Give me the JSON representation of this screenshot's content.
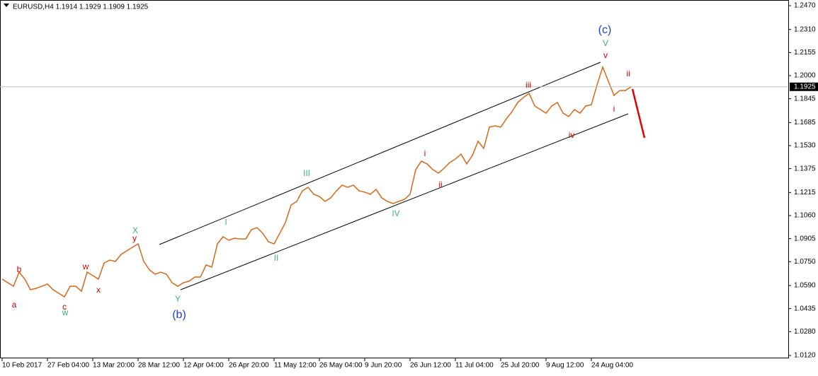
{
  "chart_data": {
    "type": "line",
    "title": "EURUSD,H4  1.1914 1.1929 1.1909 1.1925",
    "categories": [
      "10 Feb 2017",
      null,
      null,
      null,
      null,
      null,
      null,
      null,
      "27 Feb 04:00",
      null,
      null,
      null,
      null,
      null,
      null,
      null,
      "13 Mar 20:00",
      null,
      null,
      null,
      null,
      null,
      null,
      null,
      "28 Mar 12:00",
      null,
      null,
      null,
      null,
      null,
      null,
      null,
      "12 Apr 04:00",
      null,
      null,
      null,
      null,
      null,
      null,
      null,
      "26 Apr 20:00",
      null,
      null,
      null,
      null,
      null,
      null,
      null,
      "11 May 12:00",
      null,
      null,
      null,
      null,
      null,
      null,
      null,
      "26 May 04:00",
      null,
      null,
      null,
      null,
      null,
      null,
      null,
      "9 Jun 20:00",
      null,
      null,
      null,
      null,
      null,
      null,
      null,
      "26 Jun 12:00",
      null,
      null,
      null,
      null,
      null,
      null,
      null,
      "11 Jul 04:00",
      null,
      null,
      null,
      null,
      null,
      null,
      null,
      "25 Jul 20:00",
      null,
      null,
      null,
      null,
      null,
      null,
      null,
      "9 Aug 12:00",
      null,
      null,
      null,
      null,
      null,
      null,
      null,
      "24 Aug 04:00",
      null,
      null,
      null,
      null,
      null,
      null,
      null
    ],
    "series": [
      {
        "name": "EURUSD",
        "color": "#d2691e",
        "values": [
          1.0633,
          1.0609,
          1.0585,
          1.068,
          1.0633,
          1.0562,
          1.0571,
          1.0585,
          1.06,
          1.0562,
          1.0538,
          1.0514,
          1.0585,
          1.0585,
          1.0552,
          1.068,
          1.0657,
          1.0633,
          1.0742,
          1.0761,
          1.0752,
          1.0799,
          1.0823,
          1.0847,
          1.087,
          1.0752,
          1.0695,
          1.0666,
          1.068,
          1.0666,
          1.0609,
          1.0585,
          1.0609,
          1.0619,
          1.0647,
          1.0647,
          1.0728,
          1.0714,
          1.087,
          1.0918,
          1.0894,
          1.0908,
          1.0903,
          1.0903,
          1.0965,
          1.0979,
          1.0941,
          1.0884,
          1.087,
          1.0941,
          1.1013,
          1.1131,
          1.1155,
          1.1226,
          1.125,
          1.1203,
          1.1188,
          1.1155,
          1.1179,
          1.1226,
          1.1264,
          1.125,
          1.1264,
          1.1226,
          1.1217,
          1.1203,
          1.1236,
          1.1179,
          1.1155,
          1.1141,
          1.1155,
          1.1169,
          1.1203,
          1.1369,
          1.1426,
          1.1407,
          1.1369,
          1.1345,
          1.1378,
          1.1416,
          1.144,
          1.1473,
          1.1407,
          1.1464,
          1.1559,
          1.1511,
          1.1654,
          1.1663,
          1.1654,
          1.171,
          1.1758,
          1.182,
          1.1853,
          1.1881,
          1.1796,
          1.1772,
          1.1748,
          1.1796,
          1.182,
          1.1748,
          1.1725,
          1.1772,
          1.1748,
          1.1796,
          1.1805,
          1.1938,
          1.2057,
          1.1962,
          1.1867,
          1.19,
          1.19,
          1.1925
        ]
      }
    ],
    "ylim": [
      1.012,
      1.247
    ],
    "yticks": [
      {
        "value": 1.247,
        "label": "1.2470"
      },
      {
        "value": 1.231,
        "label": "1.2310"
      },
      {
        "value": 1.2155,
        "label": "1.2155"
      },
      {
        "value": 1.2,
        "label": "1.2000"
      },
      {
        "value": 1.1845,
        "label": "1.1845"
      },
      {
        "value": 1.1685,
        "label": "1.1685"
      },
      {
        "value": 1.153,
        "label": "1.1530"
      },
      {
        "value": 1.1375,
        "label": "1.1375"
      },
      {
        "value": 1.1215,
        "label": "1.1215"
      },
      {
        "value": 1.106,
        "label": "1.1060"
      },
      {
        "value": 1.0905,
        "label": "1.0905"
      },
      {
        "value": 1.075,
        "label": "1.0750"
      },
      {
        "value": 1.059,
        "label": "1.0590"
      },
      {
        "value": 1.0435,
        "label": "1.0435"
      },
      {
        "value": 1.028,
        "label": "1.0280"
      },
      {
        "value": 1.012,
        "label": "1.0120"
      }
    ],
    "annotations": [
      {
        "text": "a",
        "color": "#d00000"
      },
      {
        "text": "b",
        "color": "#d00000"
      },
      {
        "text": "c",
        "color": "#d00000"
      },
      {
        "text": "w",
        "color": "#3cb371"
      },
      {
        "text": "w",
        "color": "#d00000"
      },
      {
        "text": "x",
        "color": "#d00000"
      },
      {
        "text": "X",
        "color": "#3cb371"
      },
      {
        "text": "y",
        "color": "#d00000"
      },
      {
        "text": "Y",
        "color": "#3cb371"
      },
      {
        "text": "(b)",
        "color": "#1f3fd0"
      },
      {
        "text": "I",
        "color": "#3cb371"
      },
      {
        "text": "II",
        "color": "#3cb371"
      },
      {
        "text": "III",
        "color": "#3cb371"
      },
      {
        "text": "IV",
        "color": "#3cb371"
      },
      {
        "text": "i",
        "color": "#d00000"
      },
      {
        "text": "ii",
        "color": "#d00000"
      },
      {
        "text": "iii",
        "color": "#d00000"
      },
      {
        "text": "iv",
        "color": "#d00000"
      },
      {
        "text": "v",
        "color": "#d00000"
      },
      {
        "text": "V",
        "color": "#3cb371"
      },
      {
        "text": "(c)",
        "color": "#1f3fd0"
      },
      {
        "text": "ii",
        "color": "#d00000"
      },
      {
        "text": "i",
        "color": "#d00000"
      }
    ]
  }
}
